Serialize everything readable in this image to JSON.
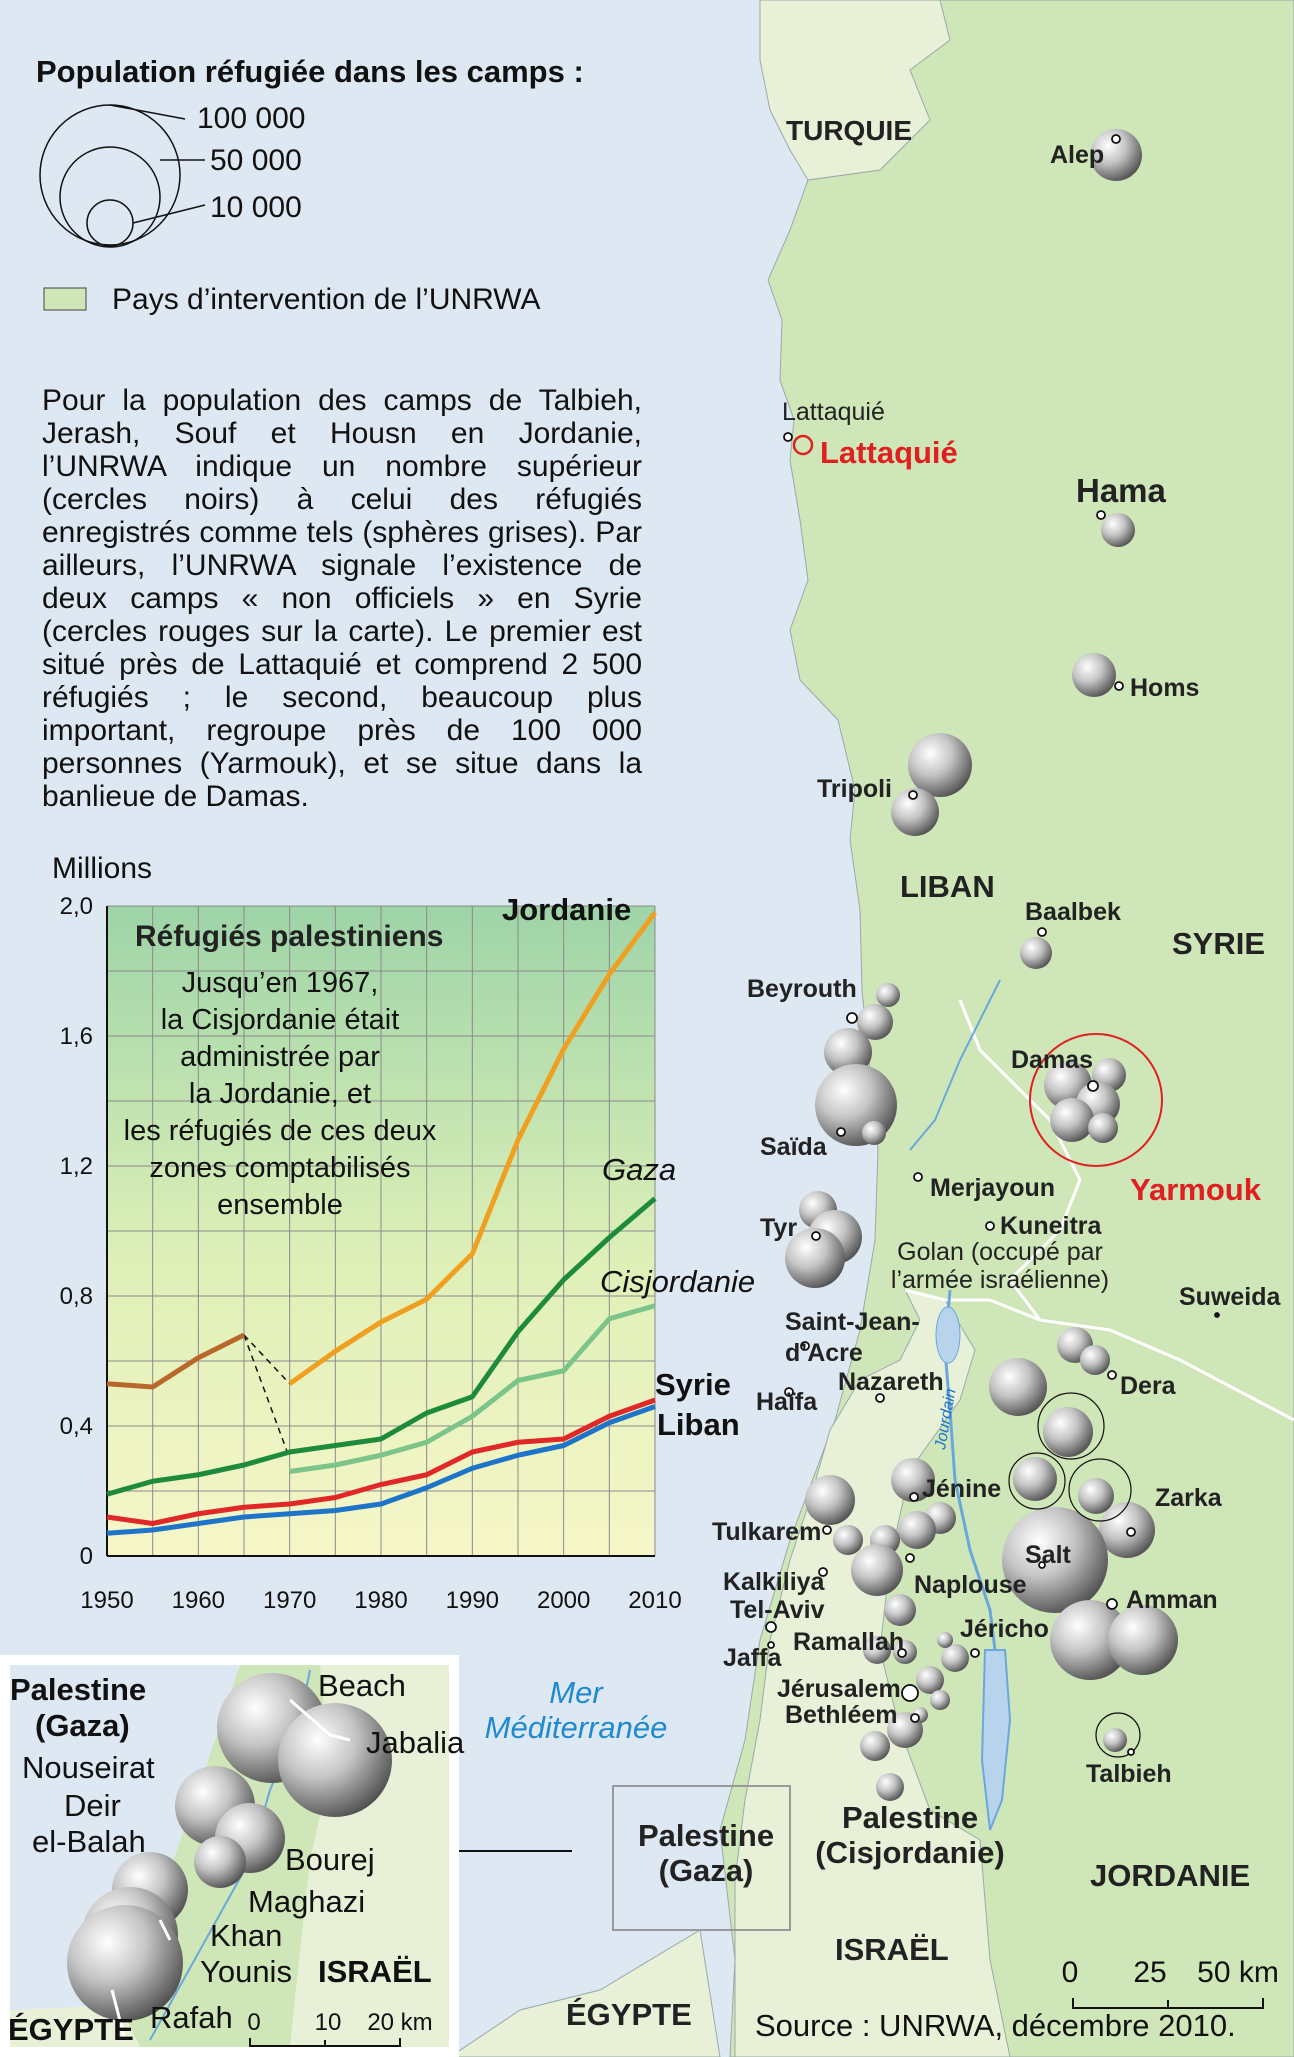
{
  "legend": {
    "title": "Population réfugiée dans les camps :",
    "circle_values": [
      "100 000",
      "50 000",
      "10 000"
    ],
    "country_swatch_label": "Pays d’intervention de l’UNRWA"
  },
  "note": "Pour la population des camps de Talbieh, Jerash, Souf et Housn en Jordanie, l’UNRWA indique un nombre supérieur (cercles noirs) à celui des réfugiés enregistrés comme tels (sphères grises). Par ailleurs, l’UNRWA signale l’existence de deux camps « non officiels » en Syrie (cercles rouges sur la carte). Le premier est situé près de Lattaquié et comprend 2 500 réfugiés ; le second, beaucoup plus important, regroupe près de 100 000 personnes (Yarmouk), et se situe dans la banlieue de Damas.",
  "colors": {
    "land_unrwa": "#cfe6b8",
    "land_other": "#e8f0d8",
    "sea": "#dde8f3",
    "unofficial": "#e02020",
    "water": "#6aa8dc"
  },
  "chart_data": {
    "type": "line",
    "title": "Réfugiés palestiniens",
    "annotation": "Jusqu’en 1967, la Cisjordanie était administrée par la Jordanie, et les réfugiés de ces deux zones comptabilisés ensemble",
    "ylabel": "Millions",
    "ylim": [
      0,
      2.0
    ],
    "xlim": [
      1950,
      2010
    ],
    "x_ticks": [
      "1950",
      "1960",
      "1970",
      "1980",
      "1990",
      "2000",
      "2010"
    ],
    "y_ticks": [
      "0",
      "0,4",
      "0,8",
      "1,2",
      "1,6",
      "2,0"
    ],
    "series": [
      {
        "name": "Jordanie",
        "color": "#f0a020",
        "x": [
          1970,
          1975,
          1980,
          1985,
          1990,
          1995,
          2000,
          2005,
          2010
        ],
        "y": [
          0.53,
          0.63,
          0.72,
          0.79,
          0.93,
          1.28,
          1.56,
          1.79,
          1.98
        ]
      },
      {
        "name": "",
        "color": "#b8682a",
        "x": [
          1950,
          1955,
          1960,
          1965
        ],
        "y": [
          0.53,
          0.52,
          0.61,
          0.68
        ]
      },
      {
        "name": "Gaza",
        "color": "#1e8a3c",
        "x": [
          1950,
          1955,
          1960,
          1965,
          1970,
          1975,
          1980,
          1985,
          1990,
          1995,
          2000,
          2005,
          2010
        ],
        "y": [
          0.19,
          0.23,
          0.25,
          0.28,
          0.32,
          0.34,
          0.36,
          0.44,
          0.49,
          0.69,
          0.85,
          0.98,
          1.1
        ]
      },
      {
        "name": "Cisjordanie",
        "color": "#7cc48a",
        "x": [
          1970,
          1975,
          1980,
          1985,
          1990,
          1995,
          2000,
          2005,
          2010
        ],
        "y": [
          0.26,
          0.28,
          0.31,
          0.35,
          0.43,
          0.54,
          0.57,
          0.73,
          0.77
        ]
      },
      {
        "name": "Syrie",
        "color": "#e02828",
        "x": [
          1950,
          1955,
          1960,
          1965,
          1970,
          1975,
          1980,
          1985,
          1990,
          1995,
          2000,
          2005,
          2010
        ],
        "y": [
          0.12,
          0.1,
          0.13,
          0.15,
          0.16,
          0.18,
          0.22,
          0.25,
          0.32,
          0.35,
          0.36,
          0.43,
          0.48
        ]
      },
      {
        "name": "Liban",
        "color": "#1e74c8",
        "x": [
          1950,
          1955,
          1960,
          1965,
          1970,
          1975,
          1980,
          1985,
          1990,
          1995,
          2000,
          2005,
          2010
        ],
        "y": [
          0.07,
          0.08,
          0.1,
          0.12,
          0.13,
          0.14,
          0.16,
          0.21,
          0.27,
          0.31,
          0.34,
          0.41,
          0.46
        ]
      }
    ],
    "dashed_links": [
      {
        "x": [
          1965,
          1970
        ],
        "y": [
          0.68,
          0.53
        ]
      },
      {
        "x": [
          1965,
          1970
        ],
        "y": [
          0.68,
          0.3
        ]
      }
    ]
  },
  "map": {
    "countries": {
      "turquie": "TURQUIE",
      "syrie": "SYRIE",
      "liban": "LIBAN",
      "jordanie": "JORDANIE",
      "israel": "ISRAËL",
      "egypte": "ÉGYPTE",
      "cisjordanie": "Palestine (Cisjordanie)",
      "gaza": "Palestine (Gaza)"
    },
    "sea": "Mer Méditerranée",
    "golan": "Golan (occupé par l’armée israélienne)",
    "river": "Jourdain",
    "cities": {
      "alep": "Alep",
      "lattaquie": "Lattaquié",
      "lattaquie_camp": "Lattaquié",
      "hama": "Hama",
      "homs": "Homs",
      "tripoli": "Tripoli",
      "baalbek": "Baalbek",
      "beyrouth": "Beyrouth",
      "damas": "Damas",
      "yarmouk": "Yarmouk",
      "saida": "Saïda",
      "merjayoun": "Merjayoun",
      "kuneitra": "Kuneitra",
      "tyr": "Tyr",
      "suweida": "Suweida",
      "saint_jean": "Saint-Jean-d’Acre",
      "haifa": "Haïfa",
      "nazareth": "Nazareth",
      "dera": "Dera",
      "jenine": "Jénine",
      "zarka": "Zarka",
      "tulkarem": "Tulkarem",
      "salt": "Salt",
      "naplouse": "Naplouse",
      "amman": "Amman",
      "kalkiliya": "Kalkiliya",
      "tel_aviv": "Tel-Aviv",
      "jaffa": "Jaffa",
      "ramallah": "Ramallah",
      "jericho": "Jéricho",
      "jerusalem": "Jérusalem",
      "bethleem": "Bethléem",
      "talbieh": "Talbieh"
    },
    "scale": [
      "0",
      "25",
      "50 km"
    ]
  },
  "inset": {
    "title": "Palestine (Gaza)",
    "camps": [
      "Beach",
      "Jabalia",
      "Nouseirat",
      "Deir el-Balah",
      "Bourej",
      "Maghazi",
      "Khan Younis",
      "Rafah"
    ],
    "israel": "ISRAËL",
    "egypte": "ÉGYPTE",
    "scale": [
      "0",
      "10",
      "20 km"
    ]
  },
  "source": "Source : UNRWA, décembre 2010."
}
